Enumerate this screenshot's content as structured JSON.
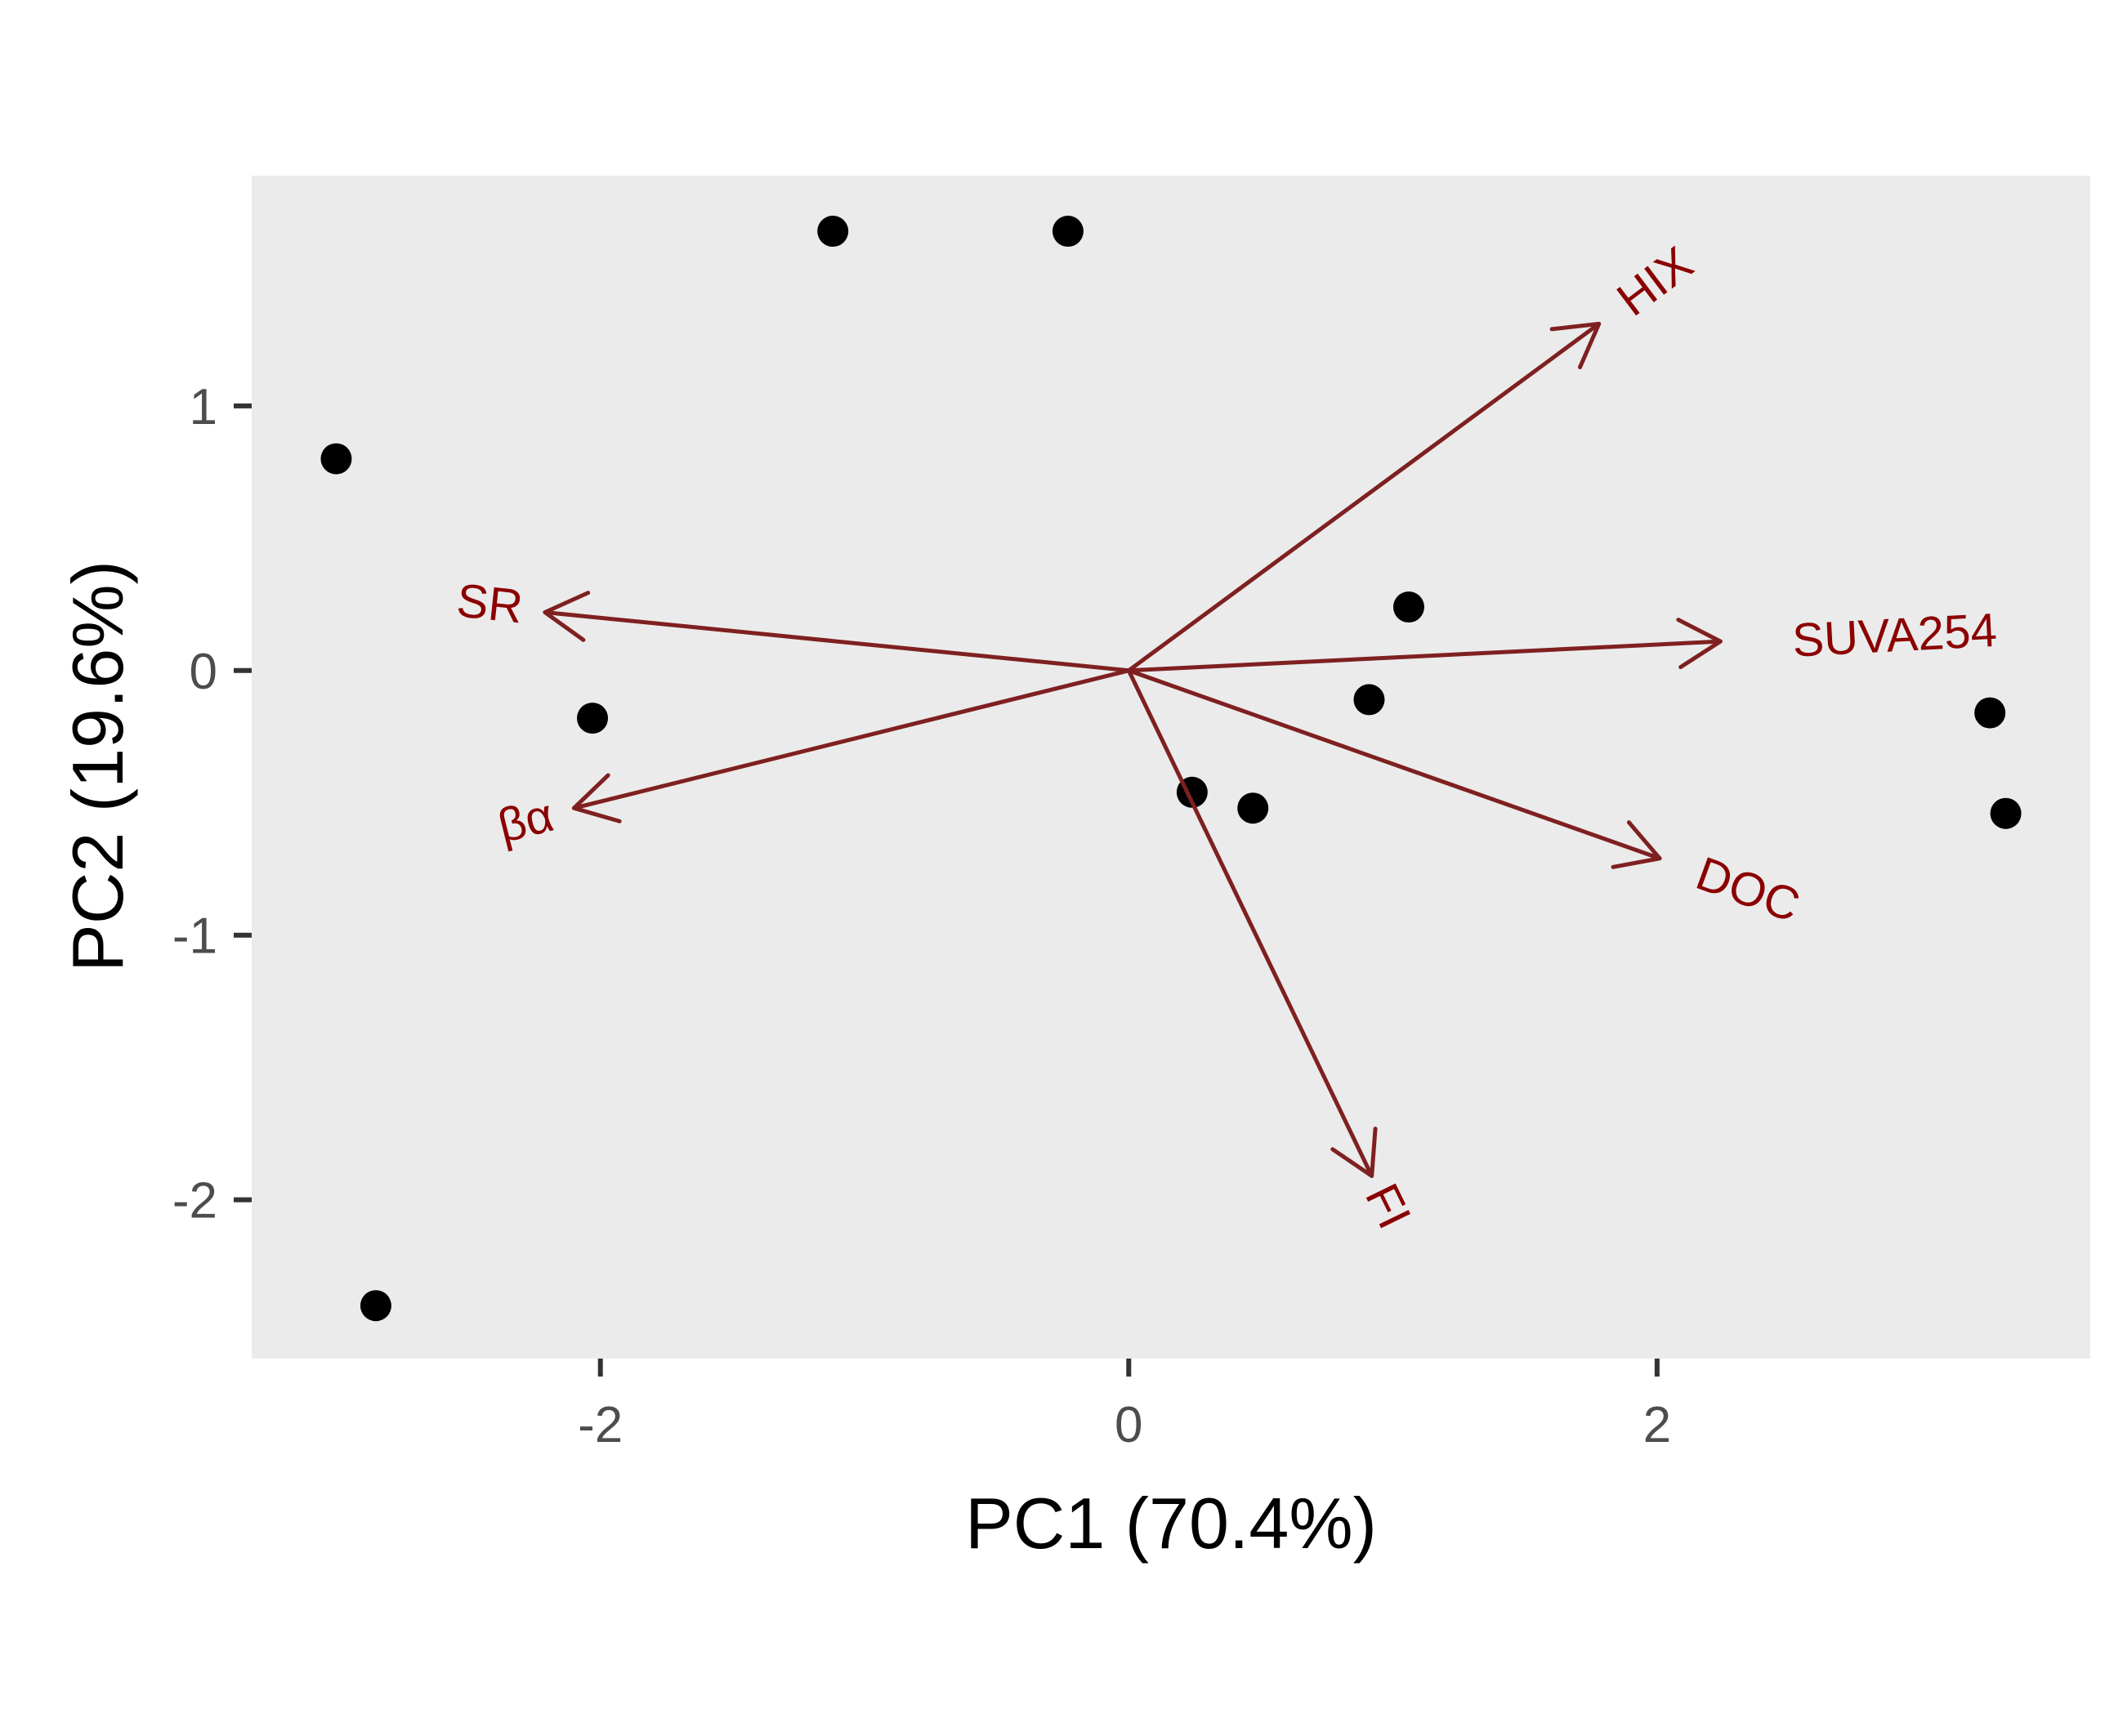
{
  "chart_data": {
    "type": "scatter",
    "title": "",
    "xlabel": "PC1 (70.4%)",
    "ylabel": "PC2 (19.6%)",
    "xlim": [
      -3.32,
      3.64
    ],
    "ylim": [
      -2.6,
      1.87
    ],
    "x_ticks": [
      {
        "value": -2,
        "label": "-2"
      },
      {
        "value": 0,
        "label": "0"
      },
      {
        "value": 2,
        "label": "2"
      }
    ],
    "y_ticks": [
      {
        "value": -2,
        "label": "-2"
      },
      {
        "value": -1,
        "label": "-1"
      },
      {
        "value": 0,
        "label": "0"
      },
      {
        "value": 1,
        "label": "1"
      }
    ],
    "grid": false,
    "legend": "none",
    "colors": {
      "panel_background": "#ebebeb",
      "points": "#000000",
      "loading_arrows": "#7f2020",
      "loading_labels": "#8b0000",
      "tick_labels": "#4d4d4d",
      "ticks": "#333333"
    },
    "points": [
      {
        "x": -3.0,
        "y": 0.8
      },
      {
        "x": -2.85,
        "y": -2.4
      },
      {
        "x": -1.12,
        "y": 1.66
      },
      {
        "x": -0.23,
        "y": 1.66
      },
      {
        "x": -2.03,
        "y": -0.18
      },
      {
        "x": 0.24,
        "y": -0.46
      },
      {
        "x": 0.47,
        "y": -0.52
      },
      {
        "x": 0.91,
        "y": -0.11
      },
      {
        "x": 1.06,
        "y": 0.24
      },
      {
        "x": 3.26,
        "y": -0.16
      },
      {
        "x": 3.32,
        "y": -0.54
      }
    ],
    "loadings": [
      {
        "name": "HIX",
        "x": 1.78,
        "y": 1.31,
        "label_x": 2.0,
        "label_y": 1.46,
        "label_angle": -37
      },
      {
        "name": "SUVA254",
        "x": 2.24,
        "y": 0.11,
        "label_x": 2.9,
        "label_y": 0.12,
        "label_angle": -3
      },
      {
        "name": "SR",
        "x": -2.21,
        "y": 0.22,
        "label_x": -2.42,
        "label_y": 0.24,
        "label_angle": 6
      },
      {
        "name": "βα",
        "x": -2.1,
        "y": -0.52,
        "label_x": -2.28,
        "label_y": -0.58,
        "label_angle": -14
      },
      {
        "name": "DOC",
        "x": 2.01,
        "y": -0.71,
        "label_x": 2.34,
        "label_y": -0.84,
        "label_angle": 20
      },
      {
        "name": "FI",
        "x": 0.92,
        "y": -1.91,
        "label_x": 0.97,
        "label_y": -2.03,
        "label_angle": 64
      }
    ]
  }
}
